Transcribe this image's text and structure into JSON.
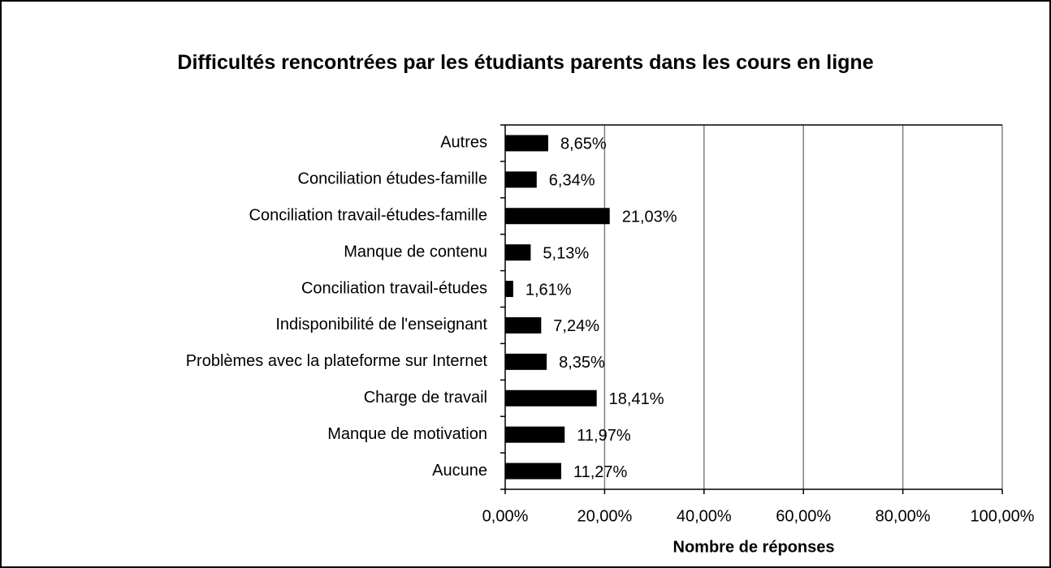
{
  "chart_data": {
    "type": "bar",
    "orientation": "horizontal",
    "title": "Difficultés rencontrées par les étudiants parents dans les cours en ligne",
    "x_label": "Nombre de réponses",
    "categories": [
      "Autres",
      "Conciliation études-famille",
      "Conciliation travail-études-famille",
      "Manque de contenu",
      "Conciliation travail-études",
      "Indisponibilité de l'enseignant",
      "Problèmes avec la plateforme sur Internet",
      "Charge de travail",
      "Manque de motivation",
      "Aucune"
    ],
    "values": [
      8.65,
      6.34,
      21.03,
      5.13,
      1.61,
      7.24,
      8.35,
      18.41,
      11.97,
      11.27
    ],
    "value_labels": [
      "8,65%",
      "6,34%",
      "21,03%",
      "5,13%",
      "1,61%",
      "7,24%",
      "8,35%",
      "18,41%",
      "11,97%",
      "11,27%"
    ],
    "color": "#000000",
    "xlim": [
      0,
      100
    ],
    "xticks": [
      {
        "value": 0,
        "label": "0,00%"
      },
      {
        "value": 20,
        "label": "20,00%"
      },
      {
        "value": 40,
        "label": "40,00%"
      },
      {
        "value": 60,
        "label": "60,00%"
      },
      {
        "value": 80,
        "label": "80,00%"
      },
      {
        "value": 100,
        "label": "100,00%"
      }
    ],
    "grid": true
  }
}
